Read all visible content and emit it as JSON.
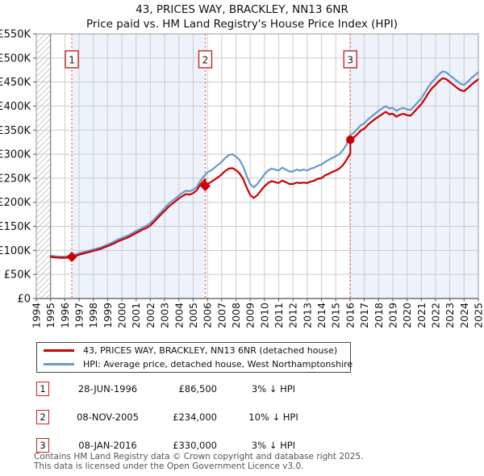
{
  "title": "43, PRICES WAY, BRACKLEY, NN13 6NR",
  "subtitle": "Price paid vs. HM Land Registry's House Price Index (HPI)",
  "legend": {
    "series1": "43, PRICES WAY, BRACKLEY, NN13 6NR (detached house)",
    "series2": "HPI: Average price, detached house, West Northamptonshire"
  },
  "transactions": [
    {
      "num": "1",
      "date": "28-JUN-1996",
      "price": "£86,500",
      "hpi": "3% ↓ HPI"
    },
    {
      "num": "2",
      "date": "08-NOV-2005",
      "price": "£234,000",
      "hpi": "10% ↓ HPI"
    },
    {
      "num": "3",
      "date": "08-JAN-2016",
      "price": "£330,000",
      "hpi": "3% ↓ HPI"
    }
  ],
  "footer": {
    "line1": "Contains HM Land Registry data © Crown copyright and database right 2025.",
    "line2": "This data is licensed under the Open Government Licence v3.0."
  },
  "chart_data": {
    "type": "line",
    "units": "GBP_thousands",
    "x_range": [
      1994,
      2025
    ],
    "y_max_k": 550,
    "y_ticks": [
      {
        "v": 0,
        "label": "£0"
      },
      {
        "v": 50,
        "label": "£50K"
      },
      {
        "v": 100,
        "label": "£100K"
      },
      {
        "v": 150,
        "label": "£150K"
      },
      {
        "v": 200,
        "label": "£200K"
      },
      {
        "v": 250,
        "label": "£250K"
      },
      {
        "v": 300,
        "label": "£300K"
      },
      {
        "v": 350,
        "label": "£350K"
      },
      {
        "v": 400,
        "label": "£400K"
      },
      {
        "v": 450,
        "label": "£450K"
      },
      {
        "v": 500,
        "label": "£500K"
      },
      {
        "v": 550,
        "label": "£550K"
      }
    ],
    "x_ticks": [
      1994,
      1995,
      1996,
      1997,
      1998,
      1999,
      2000,
      2001,
      2002,
      2003,
      2004,
      2005,
      2006,
      2007,
      2008,
      2009,
      2010,
      2011,
      2012,
      2013,
      2014,
      2015,
      2016,
      2017,
      2018,
      2019,
      2020,
      2021,
      2022,
      2023,
      2024,
      2025
    ],
    "hatch_region": [
      1994,
      1995
    ],
    "shaded_regions": [
      [
        1996.49,
        2005.85
      ],
      [
        2016.02,
        2025
      ]
    ],
    "sales": [
      {
        "x": 1996.49,
        "value_k": 86.5,
        "label": "1",
        "marker": "diamond"
      },
      {
        "x": 2005.85,
        "value_k": 234,
        "label": "2",
        "marker": "diamond"
      },
      {
        "x": 2016.02,
        "value_k": 330,
        "label": "3",
        "marker": "circle"
      }
    ],
    "colors": {
      "red": "#cc0000",
      "blue": "#6699cc",
      "dashed": "#e86060",
      "shade": "#edf2fb",
      "grid": "#cccccc",
      "border": "#999999",
      "axis_dark": "#555555",
      "hatch": "#bbbbbb",
      "box_border": "#cc2222"
    },
    "series": [
      {
        "name": "hpi",
        "color": "#6699cc",
        "points": [
          [
            1995.0,
            89
          ],
          [
            1995.25,
            88
          ],
          [
            1995.5,
            87.5
          ],
          [
            1995.75,
            87
          ],
          [
            1996.0,
            87
          ],
          [
            1996.25,
            88
          ],
          [
            1996.5,
            89.5
          ],
          [
            1996.75,
            91.5
          ],
          [
            1997.0,
            94
          ],
          [
            1997.25,
            96
          ],
          [
            1997.5,
            98
          ],
          [
            1997.75,
            100
          ],
          [
            1998.0,
            102
          ],
          [
            1998.25,
            104
          ],
          [
            1998.5,
            106
          ],
          [
            1998.75,
            109
          ],
          [
            1999.0,
            112
          ],
          [
            1999.25,
            115
          ],
          [
            1999.5,
            119
          ],
          [
            1999.75,
            123
          ],
          [
            2000.0,
            126
          ],
          [
            2000.25,
            129
          ],
          [
            2000.5,
            132
          ],
          [
            2000.75,
            136
          ],
          [
            2001.0,
            140
          ],
          [
            2001.25,
            144
          ],
          [
            2001.5,
            148
          ],
          [
            2001.75,
            152
          ],
          [
            2002.0,
            157
          ],
          [
            2002.25,
            164
          ],
          [
            2002.5,
            172
          ],
          [
            2002.75,
            180
          ],
          [
            2003.0,
            188
          ],
          [
            2003.25,
            196
          ],
          [
            2003.5,
            202
          ],
          [
            2003.75,
            208
          ],
          [
            2004.0,
            214
          ],
          [
            2004.25,
            220
          ],
          [
            2004.5,
            224
          ],
          [
            2004.75,
            223
          ],
          [
            2005.0,
            226
          ],
          [
            2005.25,
            232
          ],
          [
            2005.5,
            244
          ],
          [
            2005.75,
            254
          ],
          [
            2006.0,
            262
          ],
          [
            2006.25,
            266
          ],
          [
            2006.5,
            272
          ],
          [
            2006.75,
            278
          ],
          [
            2007.0,
            284
          ],
          [
            2007.25,
            292
          ],
          [
            2007.5,
            298
          ],
          [
            2007.75,
            300
          ],
          [
            2008.0,
            295
          ],
          [
            2008.25,
            288
          ],
          [
            2008.5,
            275
          ],
          [
            2008.75,
            255
          ],
          [
            2009.0,
            238
          ],
          [
            2009.25,
            231
          ],
          [
            2009.5,
            238
          ],
          [
            2009.75,
            248
          ],
          [
            2010.0,
            258
          ],
          [
            2010.25,
            266
          ],
          [
            2010.5,
            270
          ],
          [
            2010.75,
            268
          ],
          [
            2011.0,
            266
          ],
          [
            2011.25,
            272
          ],
          [
            2011.5,
            268
          ],
          [
            2011.75,
            264
          ],
          [
            2012.0,
            264
          ],
          [
            2012.25,
            268
          ],
          [
            2012.5,
            266
          ],
          [
            2012.75,
            268
          ],
          [
            2013.0,
            266
          ],
          [
            2013.25,
            270
          ],
          [
            2013.5,
            272
          ],
          [
            2013.75,
            276
          ],
          [
            2014.0,
            278
          ],
          [
            2014.25,
            284
          ],
          [
            2014.5,
            288
          ],
          [
            2014.75,
            292
          ],
          [
            2015.0,
            296
          ],
          [
            2015.25,
            300
          ],
          [
            2015.5,
            308
          ],
          [
            2015.75,
            320
          ],
          [
            2016.0,
            340
          ],
          [
            2016.25,
            344
          ],
          [
            2016.5,
            352
          ],
          [
            2016.75,
            360
          ],
          [
            2017.0,
            364
          ],
          [
            2017.25,
            372
          ],
          [
            2017.5,
            378
          ],
          [
            2017.75,
            384
          ],
          [
            2018.0,
            390
          ],
          [
            2018.25,
            395
          ],
          [
            2018.5,
            400
          ],
          [
            2018.75,
            395
          ],
          [
            2019.0,
            396
          ],
          [
            2019.25,
            390
          ],
          [
            2019.5,
            394
          ],
          [
            2019.75,
            396
          ],
          [
            2020.0,
            393
          ],
          [
            2020.25,
            392
          ],
          [
            2020.5,
            400
          ],
          [
            2020.75,
            408
          ],
          [
            2021.0,
            416
          ],
          [
            2021.25,
            428
          ],
          [
            2021.5,
            440
          ],
          [
            2021.75,
            450
          ],
          [
            2022.0,
            458
          ],
          [
            2022.25,
            466
          ],
          [
            2022.5,
            472
          ],
          [
            2022.75,
            470
          ],
          [
            2023.0,
            464
          ],
          [
            2023.25,
            458
          ],
          [
            2023.5,
            452
          ],
          [
            2023.75,
            446
          ],
          [
            2024.0,
            444
          ],
          [
            2024.25,
            450
          ],
          [
            2024.5,
            458
          ],
          [
            2024.75,
            464
          ],
          [
            2025.0,
            470
          ]
        ]
      },
      {
        "name": "price-paid",
        "color": "#cc0000",
        "points": [
          [
            1995.0,
            86.5
          ],
          [
            1995.25,
            85.5
          ],
          [
            1995.5,
            85
          ],
          [
            1995.75,
            84.5
          ],
          [
            1996.0,
            84.5
          ],
          [
            1996.25,
            85.5
          ],
          [
            1996.49,
            86.5
          ],
          [
            1996.75,
            88.5
          ],
          [
            1997.0,
            91
          ],
          [
            1997.25,
            93
          ],
          [
            1997.5,
            95
          ],
          [
            1997.75,
            97
          ],
          [
            1998.0,
            99
          ],
          [
            1998.25,
            101
          ],
          [
            1998.5,
            103
          ],
          [
            1998.75,
            106
          ],
          [
            1999.0,
            109
          ],
          [
            1999.25,
            112
          ],
          [
            1999.5,
            115
          ],
          [
            1999.75,
            119
          ],
          [
            2000.0,
            122
          ],
          [
            2000.25,
            125
          ],
          [
            2000.5,
            128
          ],
          [
            2000.75,
            132
          ],
          [
            2001.0,
            136
          ],
          [
            2001.25,
            140
          ],
          [
            2001.5,
            144
          ],
          [
            2001.75,
            147
          ],
          [
            2002.0,
            152
          ],
          [
            2002.25,
            159
          ],
          [
            2002.5,
            167
          ],
          [
            2002.75,
            175
          ],
          [
            2003.0,
            182
          ],
          [
            2003.25,
            190
          ],
          [
            2003.5,
            196
          ],
          [
            2003.75,
            202
          ],
          [
            2004.0,
            208
          ],
          [
            2004.25,
            213
          ],
          [
            2004.5,
            217
          ],
          [
            2004.75,
            216
          ],
          [
            2005.0,
            219
          ],
          [
            2005.25,
            225
          ],
          [
            2005.5,
            237
          ],
          [
            2005.85,
            248
          ],
          [
            2005.85,
            234
          ],
          [
            2006.0,
            238
          ],
          [
            2006.25,
            242
          ],
          [
            2006.5,
            247
          ],
          [
            2006.75,
            252
          ],
          [
            2007.0,
            258
          ],
          [
            2007.25,
            265
          ],
          [
            2007.5,
            270
          ],
          [
            2007.75,
            271
          ],
          [
            2008.0,
            267
          ],
          [
            2008.25,
            260
          ],
          [
            2008.5,
            249
          ],
          [
            2008.75,
            231
          ],
          [
            2009.0,
            215
          ],
          [
            2009.25,
            209
          ],
          [
            2009.5,
            215
          ],
          [
            2009.75,
            224
          ],
          [
            2010.0,
            233
          ],
          [
            2010.25,
            240
          ],
          [
            2010.5,
            244
          ],
          [
            2010.75,
            242
          ],
          [
            2011.0,
            240
          ],
          [
            2011.25,
            245
          ],
          [
            2011.5,
            242
          ],
          [
            2011.75,
            238
          ],
          [
            2012.0,
            238
          ],
          [
            2012.25,
            241
          ],
          [
            2012.5,
            240
          ],
          [
            2012.75,
            241
          ],
          [
            2013.0,
            240
          ],
          [
            2013.25,
            243
          ],
          [
            2013.5,
            245
          ],
          [
            2013.75,
            249
          ],
          [
            2014.0,
            250
          ],
          [
            2014.25,
            256
          ],
          [
            2014.5,
            259
          ],
          [
            2014.75,
            263
          ],
          [
            2015.0,
            266
          ],
          [
            2015.25,
            270
          ],
          [
            2015.5,
            277
          ],
          [
            2015.75,
            288
          ],
          [
            2016.02,
            302
          ],
          [
            2016.02,
            330
          ],
          [
            2016.25,
            334
          ],
          [
            2016.5,
            341
          ],
          [
            2016.75,
            349
          ],
          [
            2017.0,
            353
          ],
          [
            2017.25,
            361
          ],
          [
            2017.5,
            367
          ],
          [
            2017.75,
            373
          ],
          [
            2018.0,
            378
          ],
          [
            2018.25,
            383
          ],
          [
            2018.5,
            388
          ],
          [
            2018.75,
            383
          ],
          [
            2019.0,
            384
          ],
          [
            2019.25,
            378
          ],
          [
            2019.5,
            382
          ],
          [
            2019.75,
            384
          ],
          [
            2020.0,
            381
          ],
          [
            2020.25,
            380
          ],
          [
            2020.5,
            388
          ],
          [
            2020.75,
            396
          ],
          [
            2021.0,
            404
          ],
          [
            2021.25,
            415
          ],
          [
            2021.5,
            427
          ],
          [
            2021.75,
            437
          ],
          [
            2022.0,
            444
          ],
          [
            2022.25,
            452
          ],
          [
            2022.5,
            458
          ],
          [
            2022.75,
            456
          ],
          [
            2023.0,
            450
          ],
          [
            2023.25,
            444
          ],
          [
            2023.5,
            438
          ],
          [
            2023.75,
            433
          ],
          [
            2024.0,
            431
          ],
          [
            2024.25,
            437
          ],
          [
            2024.5,
            444
          ],
          [
            2024.75,
            450
          ],
          [
            2025.0,
            456
          ]
        ]
      }
    ]
  }
}
